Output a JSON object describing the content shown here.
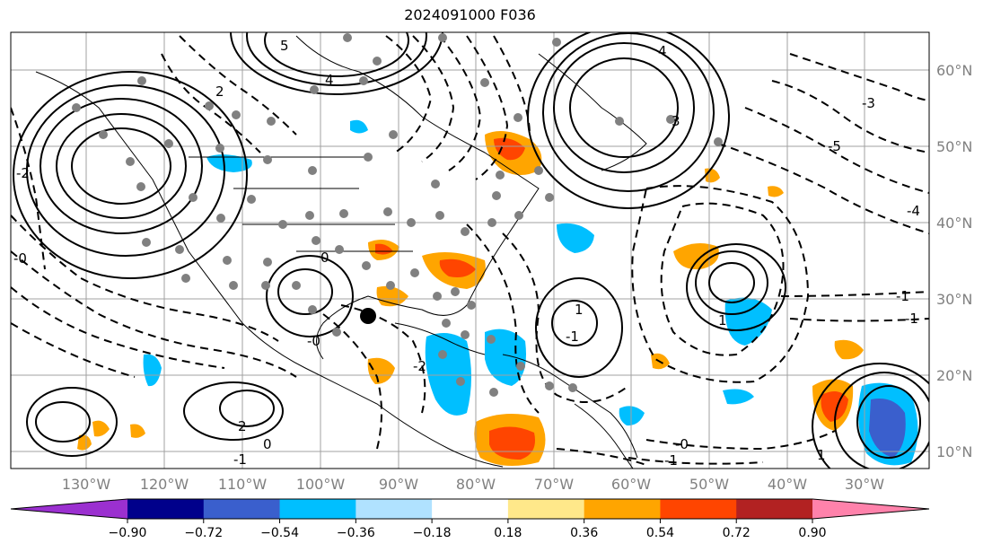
{
  "title": "2024091000 F036",
  "lon_labels": [
    "130°W",
    "120°W",
    "110°W",
    "100°W",
    "90°W",
    "80°W",
    "70°W",
    "60°W",
    "50°W",
    "40°W",
    "30°W"
  ],
  "lat_labels": [
    "60°N",
    "50°N",
    "40°N",
    "30°N",
    "20°N",
    "10°N"
  ],
  "colorbar": {
    "colors": [
      "#9b30d0",
      "#00008b",
      "#3a5fcd",
      "#00bfff",
      "#b0e2ff",
      "#ffffff",
      "#ffe88a",
      "#ffa500",
      "#ff4500",
      "#b22222",
      "#ff82ab"
    ],
    "ticks": [
      "−0.90",
      "−0.72",
      "−0.54",
      "−0.36",
      "−0.18",
      "0.18",
      "0.36",
      "0.54",
      "0.72",
      "0.90"
    ]
  },
  "contour_labels": [
    "5",
    "4",
    "3",
    "2",
    "1",
    "0",
    "-0",
    "-2",
    "-3",
    "-4",
    "-5",
    "-1",
    "1",
    "-1",
    "2",
    "-1",
    "0",
    "-1",
    "-2",
    "1",
    "-3",
    "-4",
    "-0",
    "-0",
    "-1"
  ]
}
